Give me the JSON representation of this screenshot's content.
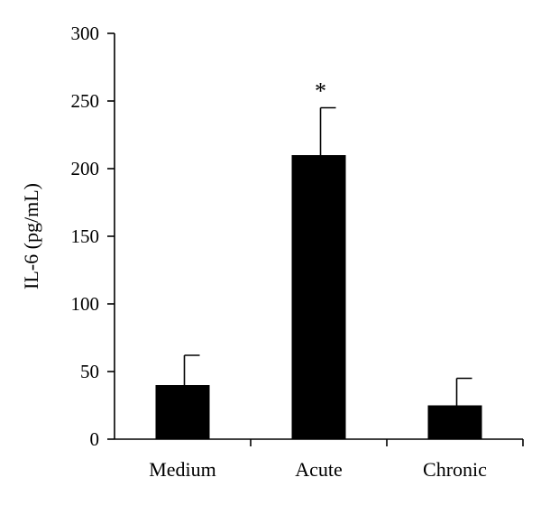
{
  "chart_data": {
    "type": "bar",
    "title": "",
    "xlabel": "",
    "ylabel": "IL-6 (pg/mL)",
    "categories": [
      "Medium",
      "Acute",
      "Chronic"
    ],
    "values": [
      40,
      210,
      25
    ],
    "error_bars": [
      22,
      35,
      20
    ],
    "annotations": [
      {
        "category": "Acute",
        "text": "*"
      }
    ],
    "ylim": [
      0,
      300
    ],
    "yticks": [
      0,
      50,
      100,
      150,
      200,
      250,
      300
    ],
    "grid": false,
    "bar_color": "#000000"
  }
}
